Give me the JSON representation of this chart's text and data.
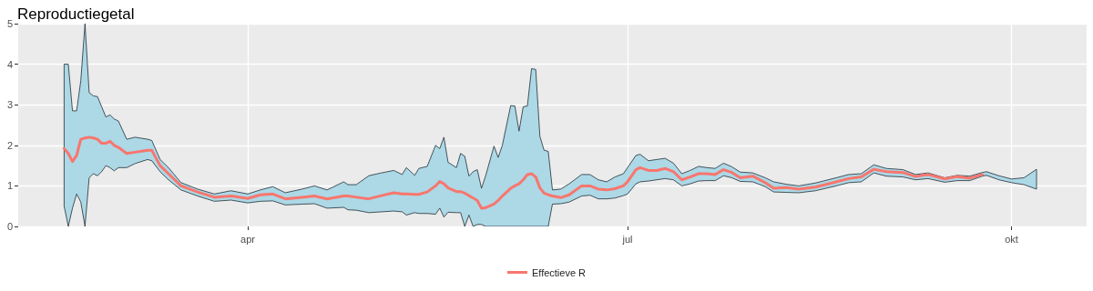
{
  "chart_data": {
    "type": "line",
    "title": "Reproductiegetal",
    "xlim": [
      "--02-06",
      "--10-19"
    ],
    "xticks": [
      {
        "value": "--04-01",
        "label": "apr"
      },
      {
        "value": "--07-01",
        "label": "jul"
      },
      {
        "value": "--10-01",
        "label": "okt"
      }
    ],
    "ylim": [
      0,
      5
    ],
    "yticks": [
      0,
      1,
      2,
      3,
      4,
      5
    ],
    "grid": true,
    "legend": "bottom",
    "series": [
      {
        "name": "Effectieve R",
        "color": "#f8766d",
        "x": [
          "--02-17",
          "--02-18",
          "--02-19",
          "--02-20",
          "--02-21",
          "--02-22",
          "--02-23",
          "--02-24",
          "--02-25",
          "--02-26",
          "--02-27",
          "--02-28",
          "--02-29",
          "--03-01",
          "--03-03",
          "--03-05",
          "--03-08",
          "--03-09",
          "--03-11",
          "--03-13",
          "--03-16",
          "--03-20",
          "--03-24",
          "--03-28",
          "--04-01",
          "--04-04",
          "--04-07",
          "--04-10",
          "--04-14",
          "--04-17",
          "--04-20",
          "--04-24",
          "--04-25",
          "--04-27",
          "--04-30",
          "--05-03",
          "--05-06",
          "--05-08",
          "--05-09",
          "--05-11",
          "--05-12",
          "--05-14",
          "--05-16",
          "--05-17",
          "--05-18",
          "--05-19",
          "--05-21",
          "--05-22",
          "--05-23",
          "--05-24",
          "--05-25",
          "--05-26",
          "--05-27",
          "--05-28",
          "--05-30",
          "--05-31",
          "--06-01",
          "--06-03",
          "--06-04",
          "--06-05",
          "--06-06",
          "--06-07",
          "--06-08",
          "--06-09",
          "--06-10",
          "--06-11",
          "--06-12",
          "--06-13",
          "--06-15",
          "--06-17",
          "--06-20",
          "--06-22",
          "--06-24",
          "--06-26",
          "--06-28",
          "--06-30",
          "--07-01",
          "--07-03",
          "--07-04",
          "--07-06",
          "--07-08",
          "--07-10",
          "--07-12",
          "--07-14",
          "--07-16",
          "--07-18",
          "--07-20",
          "--07-22",
          "--07-24",
          "--07-26",
          "--07-28",
          "--07-31",
          "--08-03",
          "--08-05",
          "--08-08",
          "--08-11",
          "--08-15",
          "--08-20",
          "--08-23",
          "--08-26",
          "--08-29",
          "--09-01",
          "--09-05",
          "--09-08",
          "--09-11",
          "--09-15",
          "--09-18",
          "--09-21",
          "--09-24",
          "--09-25",
          "--09-28",
          "--10-01",
          "--10-04",
          "--10-07"
        ],
        "values": [
          1.92,
          1.8,
          1.6,
          1.75,
          2.15,
          2.18,
          2.2,
          2.18,
          2.15,
          2.05,
          2.05,
          2.1,
          2.0,
          1.95,
          1.8,
          1.83,
          1.88,
          1.88,
          1.5,
          1.3,
          1.0,
          0.85,
          0.72,
          0.75,
          0.69,
          0.78,
          0.8,
          0.68,
          0.72,
          0.75,
          0.68,
          0.75,
          0.75,
          0.72,
          0.68,
          0.76,
          0.83,
          0.8,
          0.8,
          0.79,
          0.79,
          0.85,
          1.0,
          1.11,
          1.05,
          0.95,
          0.86,
          0.86,
          0.82,
          0.76,
          0.7,
          0.64,
          0.45,
          0.46,
          0.55,
          0.64,
          0.75,
          0.94,
          1.0,
          1.05,
          1.15,
          1.28,
          1.3,
          1.22,
          0.95,
          0.82,
          0.78,
          0.75,
          0.71,
          0.78,
          1.0,
          1.0,
          0.92,
          0.9,
          0.93,
          1.0,
          1.1,
          1.4,
          1.45,
          1.38,
          1.38,
          1.43,
          1.35,
          1.15,
          1.22,
          1.3,
          1.3,
          1.28,
          1.4,
          1.33,
          1.2,
          1.24,
          1.08,
          0.94,
          0.96,
          0.92,
          0.97,
          1.1,
          1.18,
          1.22,
          1.41,
          1.35,
          1.33,
          1.23,
          1.28,
          1.17,
          1.23,
          1.19,
          1.28,
          null,
          null,
          null,
          null,
          null
        ],
        "lower": [
          0.5,
          0,
          0.45,
          0.8,
          0.6,
          0,
          1.2,
          1.3,
          1.25,
          1.35,
          1.5,
          1.45,
          1.37,
          1.45,
          1.45,
          1.55,
          1.65,
          1.62,
          1.35,
          1.15,
          0.9,
          0.75,
          0.62,
          0.65,
          0.58,
          0.62,
          0.63,
          0.53,
          0.55,
          0.56,
          0.45,
          0.47,
          0.41,
          0.4,
          0.34,
          0.36,
          0.38,
          0.36,
          0.28,
          0.34,
          0.32,
          0.32,
          0.3,
          0.45,
          0.23,
          0.35,
          0.34,
          0.34,
          0,
          0.28,
          0,
          0.05,
          0.05,
          0,
          0,
          0,
          0,
          0,
          0,
          0,
          0,
          0,
          0,
          0,
          0,
          0,
          0,
          0.55,
          0.56,
          0.6,
          0.75,
          0.77,
          0.68,
          0.68,
          0.7,
          0.76,
          0.8,
          1.05,
          1.1,
          1.12,
          1.15,
          1.18,
          1.15,
          1.0,
          1.05,
          1.12,
          1.13,
          1.13,
          1.25,
          1.2,
          1.11,
          1.1,
          0.98,
          0.85,
          0.84,
          0.83,
          0.88,
          1.0,
          1.08,
          1.1,
          1.32,
          1.24,
          1.22,
          1.15,
          1.18,
          1.09,
          1.13,
          1.13,
          1.24,
          1.26,
          1.15,
          1.08,
          1.03,
          0.92
        ],
        "upper": [
          4.0,
          4.0,
          2.85,
          2.85,
          3.6,
          5.0,
          3.3,
          3.22,
          3.2,
          2.95,
          2.7,
          2.75,
          2.65,
          2.6,
          2.15,
          2.2,
          2.15,
          2.12,
          1.65,
          1.45,
          1.08,
          0.92,
          0.8,
          0.88,
          0.8,
          0.9,
          0.98,
          0.83,
          0.92,
          1.0,
          0.9,
          1.1,
          1.03,
          1.03,
          1.25,
          1.32,
          1.38,
          1.28,
          1.45,
          1.26,
          1.43,
          1.48,
          2.0,
          1.92,
          2.2,
          1.58,
          1.45,
          1.8,
          1.73,
          1.24,
          1.35,
          1.4,
          0.94,
          1.25,
          1.98,
          1.7,
          2.0,
          2.98,
          2.97,
          2.35,
          2.95,
          2.97,
          3.89,
          3.87,
          2.22,
          1.88,
          1.85,
          0.9,
          0.92,
          1.05,
          1.28,
          1.28,
          1.15,
          1.1,
          1.22,
          1.3,
          1.45,
          1.75,
          1.78,
          1.62,
          1.65,
          1.68,
          1.56,
          1.3,
          1.38,
          1.48,
          1.45,
          1.43,
          1.56,
          1.47,
          1.34,
          1.32,
          1.2,
          1.1,
          1.04,
          1.0,
          1.07,
          1.2,
          1.28,
          1.3,
          1.52,
          1.43,
          1.4,
          1.28,
          1.32,
          1.2,
          1.26,
          1.24,
          1.33,
          1.35,
          1.25,
          1.17,
          1.2,
          1.41
        ]
      }
    ]
  }
}
